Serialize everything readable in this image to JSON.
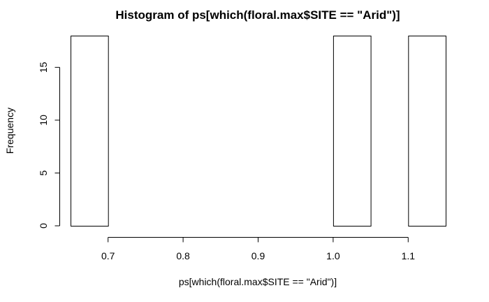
{
  "chart_data": {
    "type": "bar",
    "title": "Histogram of ps[which(floral.max$SITE == \"Arid\")]",
    "xlabel": "ps[which(floral.max$SITE == \"Arid\")]",
    "ylabel": "Frequency",
    "bins": [
      {
        "start": 0.65,
        "end": 0.7,
        "count": 18
      },
      {
        "start": 0.7,
        "end": 0.75,
        "count": 0
      },
      {
        "start": 0.75,
        "end": 0.8,
        "count": 0
      },
      {
        "start": 0.8,
        "end": 0.85,
        "count": 0
      },
      {
        "start": 0.85,
        "end": 0.9,
        "count": 0
      },
      {
        "start": 0.9,
        "end": 0.95,
        "count": 0
      },
      {
        "start": 0.95,
        "end": 1.0,
        "count": 0
      },
      {
        "start": 1.0,
        "end": 1.05,
        "count": 18
      },
      {
        "start": 1.05,
        "end": 1.1,
        "count": 0
      },
      {
        "start": 1.1,
        "end": 1.15,
        "count": 18
      }
    ],
    "xlim": [
      0.65,
      1.15
    ],
    "ylim": [
      0,
      18
    ],
    "xticks": [
      0.7,
      0.8,
      0.9,
      1.0,
      1.1
    ],
    "xtick_labels": [
      "0.7",
      "0.8",
      "0.9",
      "1.0",
      "1.1"
    ],
    "yticks": [
      0,
      5,
      10,
      15
    ],
    "ytick_labels": [
      "0",
      "5",
      "10",
      "15"
    ],
    "grid": false,
    "legend": "none"
  }
}
